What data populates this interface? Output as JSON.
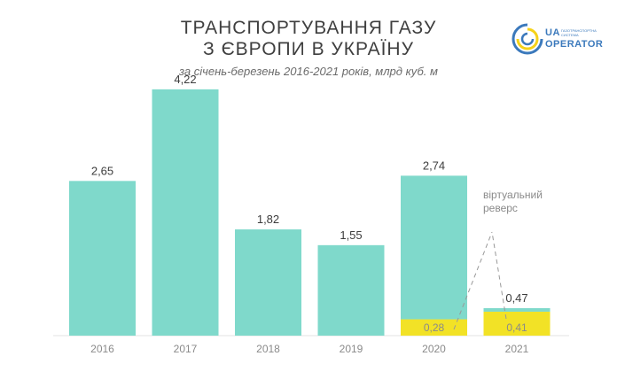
{
  "title_line1": "ТРАНСПОРТУВАННЯ ГАЗУ",
  "title_line2": "З ЄВРОПИ В УКРАЇНУ",
  "subtitle": "за січень-березень 2016-2021 років, млрд куб. м",
  "logo": {
    "line1": "UA",
    "line1_small": "ГАЗОТРАНСПОРТНА СИСТЕМА",
    "line2": "OPERATOR",
    "colors": {
      "blue": "#3b79bc",
      "yellow": "#f5d21a"
    }
  },
  "chart_data": {
    "type": "bar",
    "categories": [
      "2016",
      "2017",
      "2018",
      "2019",
      "2020",
      "2021"
    ],
    "series": [
      {
        "values": [
          2.65,
          4.22,
          1.82,
          1.55,
          2.74,
          0.47
        ],
        "color": "#7fd9cb"
      },
      {
        "values": [
          0,
          0,
          0,
          0,
          0.28,
          0.41
        ],
        "color": "#f2e226"
      }
    ],
    "labels": [
      "2,65",
      "4,22",
      "1,82",
      "1,55",
      "2,74",
      "0,47"
    ],
    "virtual_labels": [
      "",
      "",
      "",
      "",
      "0,28",
      "0,41"
    ],
    "annotation_line1": "віртуальний",
    "annotation_line2": "реверс",
    "ylim": [
      0,
      4.4
    ],
    "grid": false,
    "xlabel": "",
    "ylabel": ""
  }
}
